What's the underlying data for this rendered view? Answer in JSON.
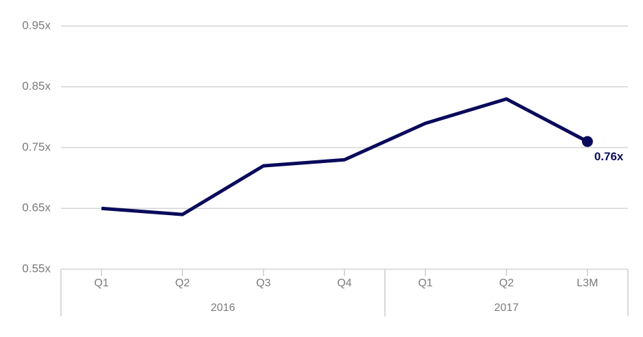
{
  "chart_data": {
    "type": "line",
    "categories": [
      "Q1",
      "Q2",
      "Q3",
      "Q4",
      "Q1",
      "Q2",
      "L3M"
    ],
    "x_groups": [
      {
        "name": "2016",
        "count": 4
      },
      {
        "name": "2017",
        "count": 3
      }
    ],
    "series": [
      {
        "color": "#0a0a5c",
        "values": [
          0.65,
          0.64,
          0.72,
          0.73,
          0.79,
          0.83,
          0.76
        ],
        "value_labels": [
          null,
          null,
          null,
          null,
          null,
          null,
          "0.76x"
        ]
      }
    ],
    "ylim": [
      0.55,
      0.95
    ],
    "yticks": [
      {
        "value": 0.55,
        "label": "0.55x"
      },
      {
        "value": 0.65,
        "label": "0.65x"
      },
      {
        "value": 0.75,
        "label": "0.75x"
      },
      {
        "value": 0.85,
        "label": "0.85x"
      },
      {
        "value": 0.95,
        "label": "0.95x"
      }
    ],
    "grid": true,
    "marker_last": true
  }
}
